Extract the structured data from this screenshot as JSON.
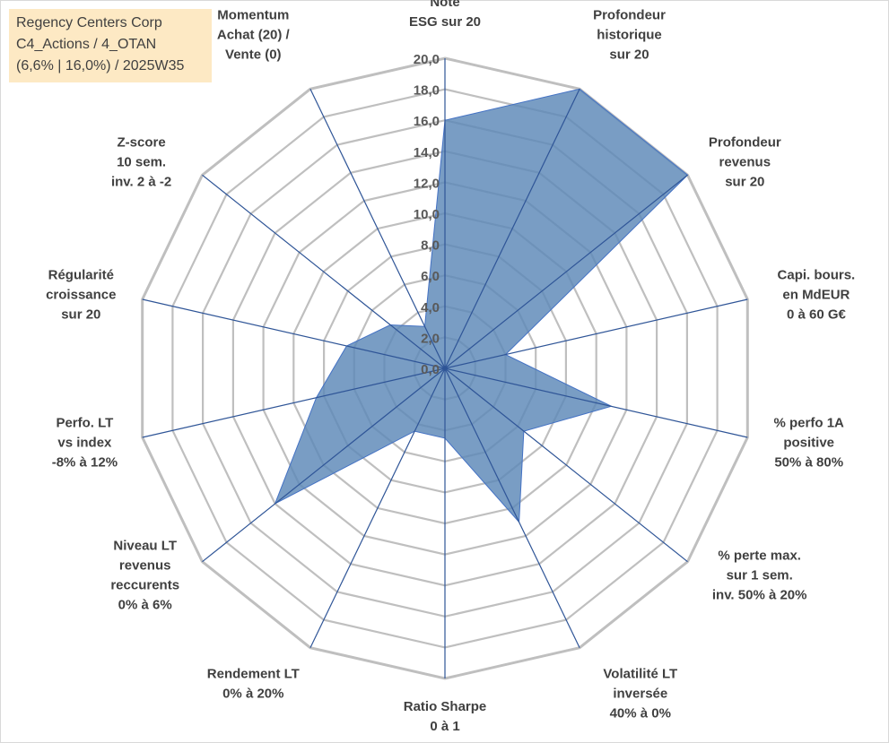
{
  "header": {
    "line1": "Regency Centers Corp",
    "line2": "C4_Actions / 4_OTAN",
    "line3": "(6,6% | 16,0%) / 2025W35"
  },
  "chart_data": {
    "type": "radar",
    "range": [
      0,
      20
    ],
    "tick_step": 2,
    "tick_labels": [
      "0,0",
      "2,0",
      "4,0",
      "6,0",
      "8,0",
      "10,0",
      "12,0",
      "14,0",
      "16,0",
      "18,0",
      "20,0"
    ],
    "axes": [
      {
        "label": [
          "Note",
          "ESG sur 20"
        ],
        "value": 16.0
      },
      {
        "label": [
          "Profondeur",
          "historique",
          "sur 20"
        ],
        "value": 20.0
      },
      {
        "label": [
          "Profondeur",
          "revenus",
          "sur 20"
        ],
        "value": 20.0
      },
      {
        "label": [
          "Capi. bours.",
          "en MdEUR",
          "0 à 60 G€"
        ],
        "value": 4.0
      },
      {
        "label": [
          "% perfo 1A",
          "positive",
          "50% à 80%"
        ],
        "value": 11.0
      },
      {
        "label": [
          "% perte max.",
          "sur 1 sem.",
          "inv. 50% à 20%"
        ],
        "value": 6.5
      },
      {
        "label": [
          "Volatilité LT",
          "inversée",
          "40% à 0%"
        ],
        "value": 11.0
      },
      {
        "label": [
          "Ratio Sharpe",
          "0 à 1"
        ],
        "value": 4.5
      },
      {
        "label": [
          "Rendement LT",
          "0% à 20%"
        ],
        "value": 4.5
      },
      {
        "label": [
          "Niveau LT",
          "revenus",
          "reccurents",
          "0% à 6%"
        ],
        "value": 14.0
      },
      {
        "label": [
          "Perfo. LT",
          "vs index",
          "-8% à 12%"
        ],
        "value": 8.5
      },
      {
        "label": [
          "Régularité",
          "croissance",
          "sur 20"
        ],
        "value": 6.5
      },
      {
        "label": [
          "Z-score",
          "10 sem.",
          "inv. 2 à -2"
        ],
        "value": 4.5
      },
      {
        "label": [
          "Momentum",
          "Achat (20) /",
          "Vente (0)"
        ],
        "value": 3.0
      }
    ],
    "colors": {
      "fill": "#5b87b7",
      "stroke": "#4472c4",
      "spoke": "#2f5597",
      "grid": "#bfbfbf"
    }
  }
}
